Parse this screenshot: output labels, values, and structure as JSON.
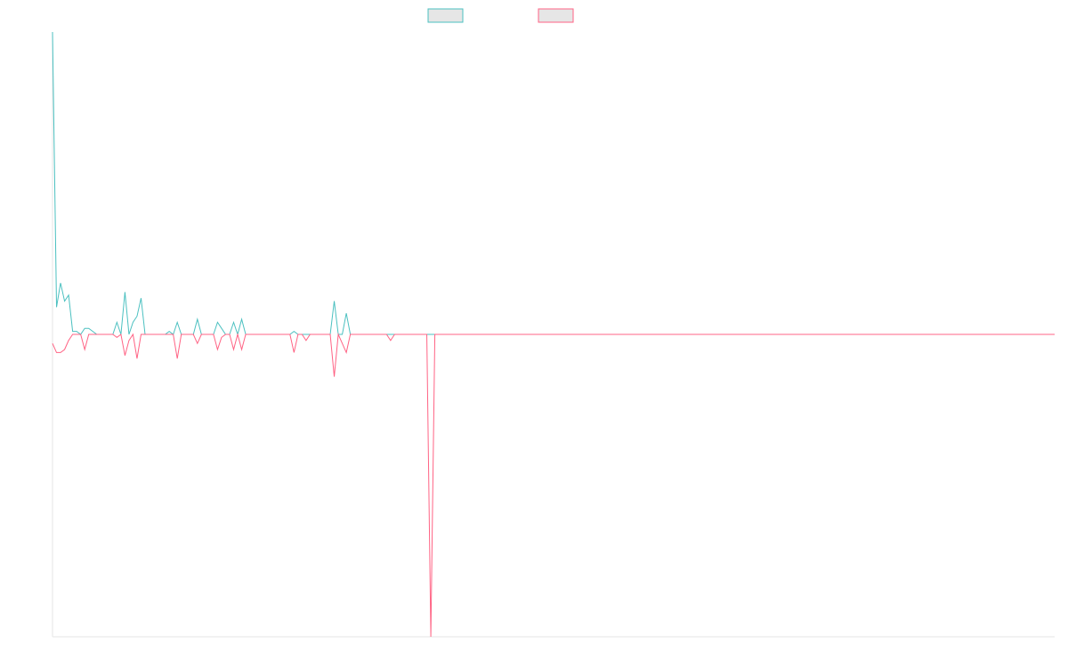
{
  "chart_data": {
    "type": "line",
    "title": "",
    "xlabel": "",
    "ylabel": "",
    "x_count": 250,
    "ylim": [
      -100,
      100
    ],
    "grid": false,
    "legend": {
      "placement": "top-center"
    },
    "series": [
      {
        "name": "",
        "color": "#4bc0c0",
        "swatch_fill": "#e6e6e6",
        "points": [
          [
            0,
            100
          ],
          [
            1,
            9
          ],
          [
            2,
            17
          ],
          [
            3,
            11
          ],
          [
            4,
            13
          ],
          [
            5,
            1
          ],
          [
            6,
            1
          ],
          [
            7,
            0
          ],
          [
            8,
            2
          ],
          [
            9,
            2
          ],
          [
            10,
            1
          ],
          [
            11,
            0
          ],
          [
            12,
            0
          ],
          [
            13,
            0
          ],
          [
            14,
            0
          ],
          [
            15,
            0
          ],
          [
            16,
            4
          ],
          [
            17,
            0
          ],
          [
            18,
            14
          ],
          [
            19,
            0
          ],
          [
            20,
            4
          ],
          [
            21,
            6
          ],
          [
            22,
            12
          ],
          [
            23,
            0
          ],
          [
            24,
            0
          ],
          [
            25,
            0
          ],
          [
            26,
            0
          ],
          [
            27,
            0
          ],
          [
            28,
            0
          ],
          [
            29,
            1
          ],
          [
            30,
            0
          ],
          [
            31,
            4
          ],
          [
            32,
            0
          ],
          [
            33,
            0
          ],
          [
            34,
            0
          ],
          [
            35,
            0
          ],
          [
            36,
            5
          ],
          [
            37,
            0
          ],
          [
            38,
            0
          ],
          [
            39,
            0
          ],
          [
            40,
            0
          ],
          [
            41,
            4
          ],
          [
            42,
            2
          ],
          [
            43,
            0
          ],
          [
            44,
            0
          ],
          [
            45,
            4
          ],
          [
            46,
            0
          ],
          [
            47,
            5
          ],
          [
            48,
            0
          ],
          [
            49,
            0
          ],
          [
            50,
            0
          ],
          [
            51,
            0
          ],
          [
            52,
            0
          ],
          [
            53,
            0
          ],
          [
            54,
            0
          ],
          [
            55,
            0
          ],
          [
            56,
            0
          ],
          [
            57,
            0
          ],
          [
            58,
            0
          ],
          [
            59,
            0
          ],
          [
            60,
            1
          ],
          [
            61,
            0
          ],
          [
            62,
            0
          ],
          [
            63,
            0
          ],
          [
            64,
            0
          ],
          [
            65,
            0
          ],
          [
            66,
            0
          ],
          [
            67,
            0
          ],
          [
            68,
            0
          ],
          [
            69,
            0
          ],
          [
            70,
            11
          ],
          [
            71,
            0
          ],
          [
            72,
            0
          ],
          [
            73,
            7
          ],
          [
            74,
            0
          ],
          [
            75,
            0
          ],
          [
            76,
            0
          ],
          [
            77,
            0
          ],
          [
            78,
            0
          ],
          [
            79,
            0
          ],
          [
            80,
            0
          ],
          [
            81,
            0
          ],
          [
            82,
            0
          ],
          [
            83,
            0
          ],
          [
            84,
            0
          ],
          [
            85,
            0
          ],
          [
            86,
            0
          ],
          [
            87,
            0
          ],
          [
            88,
            0
          ],
          [
            89,
            0
          ],
          [
            90,
            0
          ],
          [
            91,
            0
          ],
          [
            92,
            0
          ],
          [
            93,
            0
          ],
          [
            94,
            0
          ]
        ]
      },
      {
        "name": "",
        "color": "#ff6384",
        "swatch_fill": "#e6e6e6",
        "points": [
          [
            0,
            -3
          ],
          [
            1,
            -6
          ],
          [
            2,
            -6
          ],
          [
            3,
            -5
          ],
          [
            4,
            -2
          ],
          [
            5,
            0
          ],
          [
            6,
            0
          ],
          [
            7,
            0
          ],
          [
            8,
            -5
          ],
          [
            9,
            0
          ],
          [
            10,
            0
          ],
          [
            11,
            0
          ],
          [
            12,
            0
          ],
          [
            13,
            0
          ],
          [
            14,
            0
          ],
          [
            15,
            0
          ],
          [
            16,
            -1
          ],
          [
            17,
            0
          ],
          [
            18,
            -7
          ],
          [
            19,
            -2
          ],
          [
            20,
            0
          ],
          [
            21,
            -8
          ],
          [
            22,
            0
          ],
          [
            23,
            0
          ],
          [
            24,
            0
          ],
          [
            25,
            0
          ],
          [
            26,
            0
          ],
          [
            27,
            0
          ],
          [
            28,
            0
          ],
          [
            29,
            0
          ],
          [
            30,
            0
          ],
          [
            31,
            -8
          ],
          [
            32,
            0
          ],
          [
            33,
            0
          ],
          [
            34,
            0
          ],
          [
            35,
            0
          ],
          [
            36,
            -3
          ],
          [
            37,
            0
          ],
          [
            38,
            0
          ],
          [
            39,
            0
          ],
          [
            40,
            0
          ],
          [
            41,
            -5
          ],
          [
            42,
            -1
          ],
          [
            43,
            0
          ],
          [
            44,
            0
          ],
          [
            45,
            -5
          ],
          [
            46,
            0
          ],
          [
            47,
            -5
          ],
          [
            48,
            0
          ],
          [
            49,
            0
          ],
          [
            50,
            0
          ],
          [
            51,
            0
          ],
          [
            52,
            0
          ],
          [
            53,
            0
          ],
          [
            54,
            0
          ],
          [
            55,
            0
          ],
          [
            56,
            0
          ],
          [
            57,
            0
          ],
          [
            58,
            0
          ],
          [
            59,
            0
          ],
          [
            60,
            -6
          ],
          [
            61,
            0
          ],
          [
            62,
            0
          ],
          [
            63,
            -2
          ],
          [
            64,
            0
          ],
          [
            65,
            0
          ],
          [
            66,
            0
          ],
          [
            67,
            0
          ],
          [
            68,
            0
          ],
          [
            69,
            0
          ],
          [
            70,
            -14
          ],
          [
            71,
            0
          ],
          [
            72,
            -3
          ],
          [
            73,
            -6
          ],
          [
            74,
            0
          ],
          [
            75,
            0
          ],
          [
            76,
            0
          ],
          [
            77,
            0
          ],
          [
            78,
            0
          ],
          [
            79,
            0
          ],
          [
            80,
            0
          ],
          [
            81,
            0
          ],
          [
            82,
            0
          ],
          [
            83,
            0
          ],
          [
            84,
            -2
          ],
          [
            85,
            0
          ],
          [
            86,
            0
          ],
          [
            87,
            0
          ],
          [
            88,
            0
          ],
          [
            89,
            0
          ],
          [
            90,
            0
          ],
          [
            91,
            0
          ],
          [
            92,
            0
          ],
          [
            93,
            0
          ],
          [
            94,
            -100
          ],
          [
            95,
            0
          ],
          [
            96,
            0
          ]
        ]
      }
    ]
  }
}
